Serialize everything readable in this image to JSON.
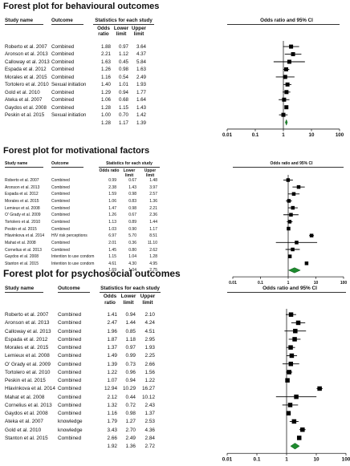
{
  "chart_data": [
    {
      "type": "forest",
      "title": "Forest plot for behavioural outcomes",
      "header": {
        "study": "Study name",
        "outcome": "Outcome",
        "stats": "Statistics for each study",
        "or": "Odds ratio",
        "lower": "Lower limit",
        "upper": "Upper limit",
        "plot": "Odds ratio and 95% CI"
      },
      "axis_ticks": [
        "0.01",
        "0.1",
        "1",
        "10",
        "100"
      ],
      "rows": [
        {
          "study": "Roberto et al. 2007",
          "outcome": "Combined",
          "or": "1.88",
          "lower": "0.97",
          "upper": "3.64",
          "or_v": 1.88,
          "lo_v": 0.97,
          "hi_v": 3.64
        },
        {
          "study": "Aronson et al. 2013",
          "outcome": "Combined",
          "or": "2.21",
          "lower": "1.12",
          "upper": "4.37",
          "or_v": 2.21,
          "lo_v": 1.12,
          "hi_v": 4.37
        },
        {
          "study": "Calloway et al. 2013",
          "outcome": "Combined",
          "or": "1.63",
          "lower": "0.45",
          "upper": "5.84",
          "or_v": 1.63,
          "lo_v": 0.45,
          "hi_v": 5.84
        },
        {
          "study": "Espada et al. 2012",
          "outcome": "Combined",
          "or": "1.26",
          "lower": "0.98",
          "upper": "1.63",
          "or_v": 1.26,
          "lo_v": 0.98,
          "hi_v": 1.63
        },
        {
          "study": "Morales et al. 2015",
          "outcome": "Combined",
          "or": "1.16",
          "lower": "0.54",
          "upper": "2.49",
          "or_v": 1.16,
          "lo_v": 0.54,
          "hi_v": 2.49
        },
        {
          "study": "Tortolero et al. 2010",
          "outcome": "Sexual initiation",
          "or": "1.40",
          "lower": "1.01",
          "upper": "1.93",
          "or_v": 1.4,
          "lo_v": 1.01,
          "hi_v": 1.93
        },
        {
          "study": "Gold et al. 2010",
          "outcome": "Combined",
          "or": "1.29",
          "lower": "0.94",
          "upper": "1.77",
          "or_v": 1.29,
          "lo_v": 0.94,
          "hi_v": 1.77
        },
        {
          "study": "Ateka et al. 2007",
          "outcome": "Combined",
          "or": "1.06",
          "lower": "0.68",
          "upper": "1.64",
          "or_v": 1.06,
          "lo_v": 0.68,
          "hi_v": 1.64
        },
        {
          "study": "Gaydos et al. 2008",
          "outcome": "Combined",
          "or": "1.28",
          "lower": "1.15",
          "upper": "1.43",
          "or_v": 1.28,
          "lo_v": 1.15,
          "hi_v": 1.43
        },
        {
          "study": "Peskin et al. 2015",
          "outcome": "Sexual initiation",
          "or": "1.00",
          "lower": "0.70",
          "upper": "1.42",
          "or_v": 1.0,
          "lo_v": 0.7,
          "hi_v": 1.42
        }
      ],
      "summary": {
        "or": "1.28",
        "lower": "1.17",
        "upper": "1.39",
        "or_v": 1.28,
        "lo_v": 1.17,
        "hi_v": 1.39
      }
    },
    {
      "type": "forest",
      "title": "Forest plot for motivational factors",
      "header": {
        "study": "Study name",
        "outcome": "Outcome",
        "stats": "Statistics for each study",
        "or": "Odds ratio",
        "lower": "Lower limit",
        "upper": "Upper limit",
        "plot": "Odds ratio and 95% CI"
      },
      "axis_ticks": [
        "0.01",
        "0.1",
        "1",
        "10",
        "100"
      ],
      "rows": [
        {
          "study": "Roberto et al. 2007",
          "outcome": "Combined",
          "or": "0.99",
          "lower": "0.67",
          "upper": "1.48",
          "or_v": 0.99,
          "lo_v": 0.67,
          "hi_v": 1.48
        },
        {
          "study": "Aronson et al. 2013",
          "outcome": "Combined",
          "or": "2.38",
          "lower": "1.43",
          "upper": "3.97",
          "or_v": 2.38,
          "lo_v": 1.43,
          "hi_v": 3.97
        },
        {
          "study": "Espada et al. 2012",
          "outcome": "Combined",
          "or": "1.59",
          "lower": "0.98",
          "upper": "2.57",
          "or_v": 1.59,
          "lo_v": 0.98,
          "hi_v": 2.57
        },
        {
          "study": "Morales et al. 2015",
          "outcome": "Combined",
          "or": "1.06",
          "lower": "0.83",
          "upper": "1.36",
          "or_v": 1.06,
          "lo_v": 0.83,
          "hi_v": 1.36
        },
        {
          "study": "Lemieux et al. 2008",
          "outcome": "Combined",
          "or": "1.47",
          "lower": "0.98",
          "upper": "2.21",
          "or_v": 1.47,
          "lo_v": 0.98,
          "hi_v": 2.21
        },
        {
          "study": "O' Grady et al. 2009",
          "outcome": "Combined",
          "or": "1.26",
          "lower": "0.67",
          "upper": "2.36",
          "or_v": 1.26,
          "lo_v": 0.67,
          "hi_v": 2.36
        },
        {
          "study": "Tortolero et al. 2010",
          "outcome": "Combined",
          "or": "1.13",
          "lower": "0.89",
          "upper": "1.44",
          "or_v": 1.13,
          "lo_v": 0.89,
          "hi_v": 1.44
        },
        {
          "study": "Peskin et al. 2015",
          "outcome": "Combined",
          "or": "1.03",
          "lower": "0.90",
          "upper": "1.17",
          "or_v": 1.03,
          "lo_v": 0.9,
          "hi_v": 1.17
        },
        {
          "study": "Hlavinkova et al. 2014",
          "outcome": "HIV risk perceptions",
          "or": "6.97",
          "lower": "5.70",
          "upper": "8.51",
          "or_v": 6.97,
          "lo_v": 5.7,
          "hi_v": 8.51
        },
        {
          "study": "Mahat et al. 2008",
          "outcome": "Combined",
          "or": "2.01",
          "lower": "0.36",
          "upper": "11.10",
          "or_v": 2.01,
          "lo_v": 0.36,
          "hi_v": 11.1
        },
        {
          "study": "Cornelius et al. 2013",
          "outcome": "Combined",
          "or": "1.45",
          "lower": "0.80",
          "upper": "2.62",
          "or_v": 1.45,
          "lo_v": 0.8,
          "hi_v": 2.62
        },
        {
          "study": "Gaydos et al. 2008",
          "outcome": "Intention to use condom",
          "or": "1.15",
          "lower": "1.04",
          "upper": "1.28",
          "or_v": 1.15,
          "lo_v": 1.04,
          "hi_v": 1.28
        },
        {
          "study": "Stanton et al. 2015",
          "outcome": "Intention to use condom",
          "or": "4.61",
          "lower": "4.30",
          "upper": "4.95",
          "or_v": 4.61,
          "lo_v": 4.3,
          "hi_v": 4.95
        }
      ],
      "summary": {
        "or": "1.69",
        "lower": "1.04",
        "upper": "2.75",
        "or_v": 1.69,
        "lo_v": 1.04,
        "hi_v": 2.75
      }
    },
    {
      "type": "forest",
      "title": "Forest plot for psychosocial outcomes",
      "header": {
        "study": "Study name",
        "outcome": "Outcome",
        "stats": "Statistics for each study",
        "or": "Odds ratio",
        "lower": "Lower limit",
        "upper": "Upper limit",
        "plot": "Odds ratio and 95% CI"
      },
      "axis_ticks": [
        "0.01",
        "0.1",
        "1",
        "10",
        "100"
      ],
      "rows": [
        {
          "study": "Roberto et al. 2007",
          "outcome": "Combined",
          "or": "1.41",
          "lower": "0.94",
          "upper": "2.10",
          "or_v": 1.41,
          "lo_v": 0.94,
          "hi_v": 2.1
        },
        {
          "study": "Aronson et al. 2013",
          "outcome": "Combined",
          "or": "2.47",
          "lower": "1.44",
          "upper": "4.24",
          "or_v": 2.47,
          "lo_v": 1.44,
          "hi_v": 4.24
        },
        {
          "study": "Calloway et al. 2013",
          "outcome": "Combined",
          "or": "1.96",
          "lower": "0.85",
          "upper": "4.51",
          "or_v": 1.96,
          "lo_v": 0.85,
          "hi_v": 4.51
        },
        {
          "study": "Espada et al. 2012",
          "outcome": "Combined",
          "or": "1.87",
          "lower": "1.18",
          "upper": "2.95",
          "or_v": 1.87,
          "lo_v": 1.18,
          "hi_v": 2.95
        },
        {
          "study": "Morales et al. 2015",
          "outcome": "Combined",
          "or": "1.37",
          "lower": "0.97",
          "upper": "1.93",
          "or_v": 1.37,
          "lo_v": 0.97,
          "hi_v": 1.93
        },
        {
          "study": "Lemieux et al. 2008",
          "outcome": "Combined",
          "or": "1.49",
          "lower": "0.99",
          "upper": "2.25",
          "or_v": 1.49,
          "lo_v": 0.99,
          "hi_v": 2.25
        },
        {
          "study": "O' Grady et al. 2009",
          "outcome": "Combined",
          "or": "1.39",
          "lower": "0.73",
          "upper": "2.66",
          "or_v": 1.39,
          "lo_v": 0.73,
          "hi_v": 2.66
        },
        {
          "study": "Tortolero et al. 2010",
          "outcome": "Combined",
          "or": "1.22",
          "lower": "0.96",
          "upper": "1.56",
          "or_v": 1.22,
          "lo_v": 0.96,
          "hi_v": 1.56
        },
        {
          "study": "Peskin et al. 2015",
          "outcome": "Combined",
          "or": "1.07",
          "lower": "0.94",
          "upper": "1.22",
          "or_v": 1.07,
          "lo_v": 0.94,
          "hi_v": 1.22
        },
        {
          "study": "Hlavinkova et al. 2014",
          "outcome": "Combined",
          "or": "12.94",
          "lower": "10.29",
          "upper": "16.27",
          "or_v": 12.94,
          "lo_v": 10.29,
          "hi_v": 16.27
        },
        {
          "study": "Mahat et al. 2008",
          "outcome": "Combined",
          "or": "2.12",
          "lower": "0.44",
          "upper": "10.12",
          "or_v": 2.12,
          "lo_v": 0.44,
          "hi_v": 10.12
        },
        {
          "study": "Cornelius et al. 2013",
          "outcome": "Combined",
          "or": "1.32",
          "lower": "0.72",
          "upper": "2.43",
          "or_v": 1.32,
          "lo_v": 0.72,
          "hi_v": 2.43
        },
        {
          "study": "Gaydos et al. 2008",
          "outcome": "Combined",
          "or": "1.16",
          "lower": "0.98",
          "upper": "1.37",
          "or_v": 1.16,
          "lo_v": 0.98,
          "hi_v": 1.37
        },
        {
          "study": "Ateka et al. 2007",
          "outcome": "knowledge",
          "or": "1.79",
          "lower": "1.27",
          "upper": "2.53",
          "or_v": 1.79,
          "lo_v": 1.27,
          "hi_v": 2.53
        },
        {
          "study": "Gold et al. 2010",
          "outcome": "knowledge",
          "or": "3.43",
          "lower": "2.70",
          "upper": "4.36",
          "or_v": 3.43,
          "lo_v": 2.7,
          "hi_v": 4.36
        },
        {
          "study": "Stanton et al. 2015",
          "outcome": "Combined",
          "or": "2.66",
          "lower": "2.49",
          "upper": "2.84",
          "or_v": 2.66,
          "lo_v": 2.49,
          "hi_v": 2.84
        }
      ],
      "summary": {
        "or": "1.92",
        "lower": "1.36",
        "upper": "2.72",
        "or_v": 1.92,
        "lo_v": 1.36,
        "hi_v": 2.72
      }
    }
  ]
}
